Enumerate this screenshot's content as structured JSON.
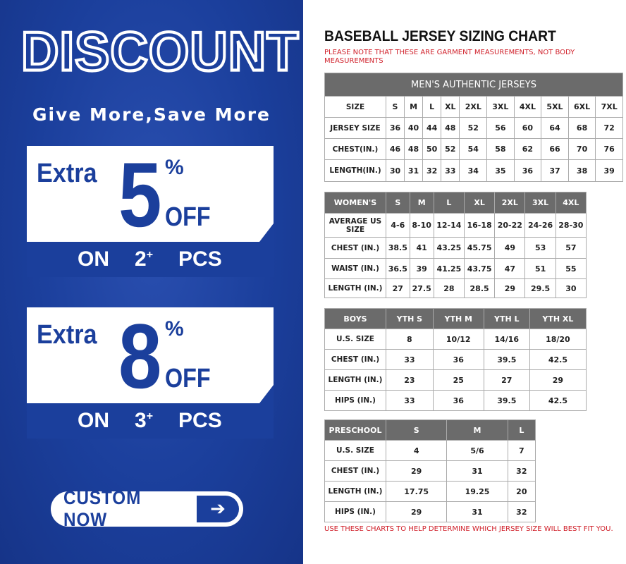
{
  "promo": {
    "headline": "DISCOUNT",
    "tagline": "Give More,Save More",
    "offers": [
      {
        "extra": "Extra",
        "number": "5",
        "percent": "%",
        "off": "OFF",
        "on": "ON",
        "pcs_count": "2",
        "plus": "+",
        "pcs": "PCS"
      },
      {
        "extra": "Extra",
        "number": "8",
        "percent": "%",
        "off": "OFF",
        "on": "ON",
        "pcs_count": "3",
        "plus": "+",
        "pcs": "PCS"
      }
    ],
    "button": "CUSTOM NOW",
    "button_icon": "arrow-right-icon",
    "brand_color": "#1b3f9c"
  },
  "chart": {
    "title": "BASEBALL JERSEY SIZING CHART",
    "note": "PLEASE NOTE THAT THESE ARE GARMENT MEASUREMENTS, NOT BODY MEASUREMENTS",
    "footer": "USE THESE CHARTS TO HELP DETERMINE WHICH JERSEY SIZE WILL BEST FIT YOU.",
    "mens": {
      "title": "MEN'S AUTHENTIC JERSEYS",
      "rows": [
        [
          "SIZE",
          "S",
          "M",
          "L",
          "XL",
          "2XL",
          "3XL",
          "4XL",
          "5XL",
          "6XL",
          "7XL"
        ],
        [
          "JERSEY SIZE",
          "36",
          "40",
          "44",
          "48",
          "52",
          "56",
          "60",
          "64",
          "68",
          "72"
        ],
        [
          "CHEST(IN.)",
          "46",
          "48",
          "50",
          "52",
          "54",
          "58",
          "62",
          "66",
          "70",
          "76"
        ],
        [
          "LENGTH(IN.)",
          "30",
          "31",
          "32",
          "33",
          "34",
          "35",
          "36",
          "37",
          "38",
          "39"
        ]
      ]
    },
    "womens": {
      "header": [
        "WOMEN'S",
        "S",
        "M",
        "L",
        "XL",
        "2XL",
        "3XL",
        "4XL"
      ],
      "rows": [
        [
          "AVERAGE US SIZE",
          "4-6",
          "8-10",
          "12-14",
          "16-18",
          "20-22",
          "24-26",
          "28-30"
        ],
        [
          "CHEST (IN.)",
          "38.5",
          "41",
          "43.25",
          "45.75",
          "49",
          "53",
          "57"
        ],
        [
          "WAIST (IN.)",
          "36.5",
          "39",
          "41.25",
          "43.75",
          "47",
          "51",
          "55"
        ],
        [
          "LENGTH (IN.)",
          "27",
          "27.5",
          "28",
          "28.5",
          "29",
          "29.5",
          "30"
        ]
      ]
    },
    "boys": {
      "header": [
        "BOYS",
        "YTH S",
        "YTH M",
        "YTH L",
        "YTH XL"
      ],
      "rows": [
        [
          "U.S. SIZE",
          "8",
          "10/12",
          "14/16",
          "18/20"
        ],
        [
          "CHEST (IN.)",
          "33",
          "36",
          "39.5",
          "42.5"
        ],
        [
          "LENGTH (IN.)",
          "23",
          "25",
          "27",
          "29"
        ],
        [
          "HIPS (IN.)",
          "33",
          "36",
          "39.5",
          "42.5"
        ]
      ]
    },
    "preschool": {
      "header": [
        "PRESCHOOL",
        "S",
        "M",
        "L"
      ],
      "rows": [
        [
          "U.S. SIZE",
          "4",
          "5/6",
          "7"
        ],
        [
          "CHEST (IN.)",
          "29",
          "31",
          "32"
        ],
        [
          "LENGTH (IN.)",
          "17.75",
          "19.25",
          "20"
        ],
        [
          "HIPS (IN.)",
          "29",
          "31",
          "32"
        ]
      ]
    }
  }
}
